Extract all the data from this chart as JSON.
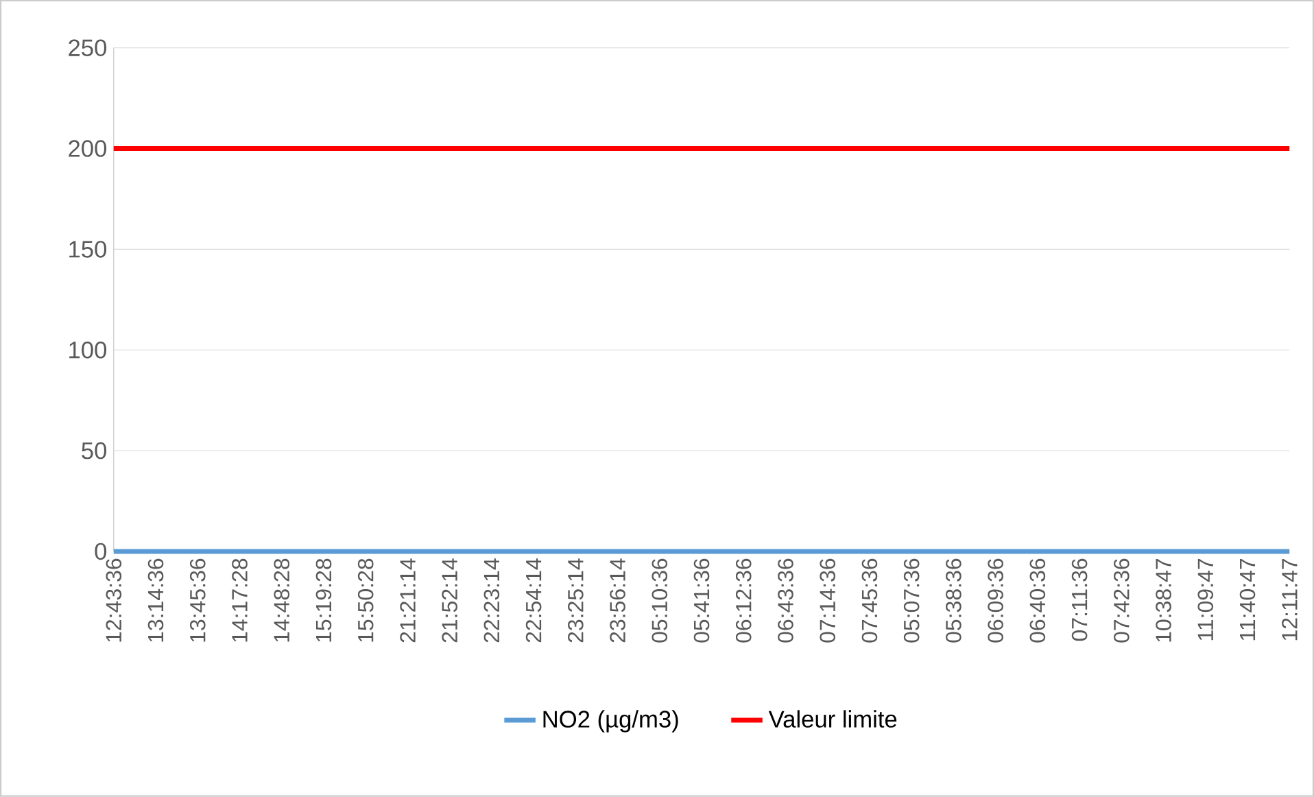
{
  "chart_data": {
    "type": "line",
    "categories": [
      "12:43:36",
      "13:14:36",
      "13:45:36",
      "14:17:28",
      "14:48:28",
      "15:19:28",
      "15:50:28",
      "21:21:14",
      "21:52:14",
      "22:23:14",
      "22:54:14",
      "23:25:14",
      "23:56:14",
      "05:10:36",
      "05:41:36",
      "06:12:36",
      "06:43:36",
      "07:14:36",
      "07:45:36",
      "05:07:36",
      "05:38:36",
      "06:09:36",
      "06:40:36",
      "07:11:36",
      "07:42:36",
      "10:38:47",
      "11:09:47",
      "11:40:47",
      "12:11:47"
    ],
    "series": [
      {
        "name": "NO2 (µg/m3)",
        "color": "#5b9bd5",
        "values": [
          0,
          0,
          0,
          0,
          0,
          0,
          0,
          0,
          0,
          0,
          0,
          0,
          0,
          0,
          0,
          0,
          0,
          0,
          0,
          0,
          0,
          0,
          0,
          0,
          0,
          0,
          0,
          0,
          0
        ]
      },
      {
        "name": "Valeur limite",
        "color": "#ff0000",
        "values": [
          200,
          200,
          200,
          200,
          200,
          200,
          200,
          200,
          200,
          200,
          200,
          200,
          200,
          200,
          200,
          200,
          200,
          200,
          200,
          200,
          200,
          200,
          200,
          200,
          200,
          200,
          200,
          200,
          200
        ]
      }
    ],
    "ylim": [
      0,
      250
    ],
    "yticks": [
      0,
      50,
      100,
      150,
      200,
      250
    ],
    "grid": "y",
    "legend": "bottom",
    "marker": "none",
    "line_style": "solid"
  }
}
